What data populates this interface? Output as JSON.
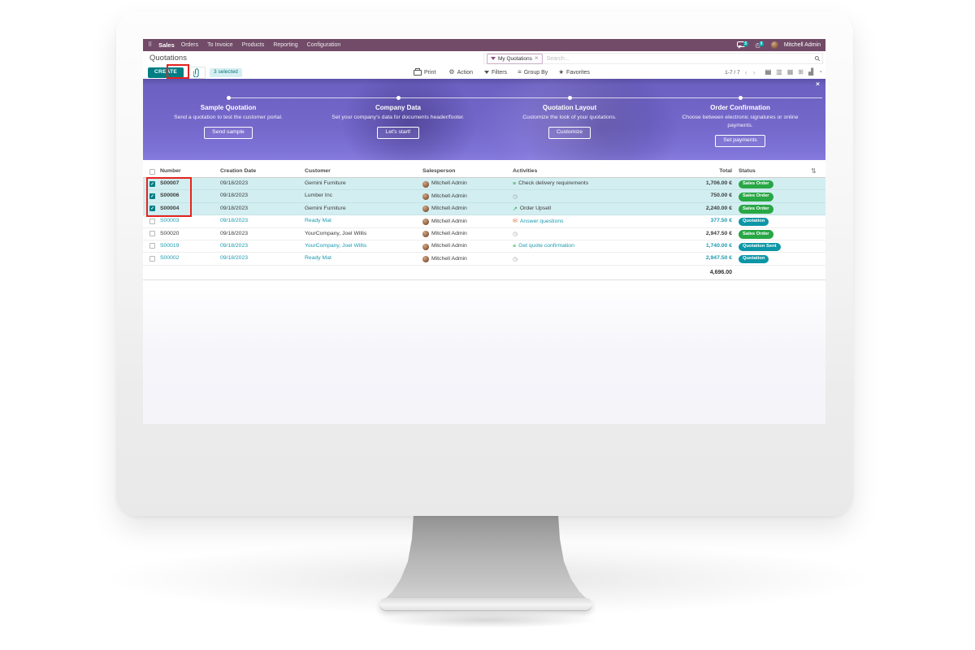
{
  "colors": {
    "brand_bar": "#714B67",
    "primary": "#017E84",
    "selected_row_bg": "#d2eef1",
    "status_green": "#28a745",
    "status_teal": "#0c96a6",
    "link_teal": "#1a9bb0",
    "banner_purple": "#7468cb",
    "annotation_red": "#e5231f"
  },
  "icons": {
    "apps_grid": "⠿",
    "activity_clock": "◷",
    "search_magnifier": "⚲",
    "facet_remove": "×",
    "gear": "⚙",
    "star": "★",
    "group_by": "≡",
    "pager_prev": "‹",
    "pager_next": "›",
    "columns_toggle": "⇅",
    "banner_close": "×",
    "check": "✓",
    "view_list": "▤",
    "view_kanban": "▥",
    "view_calendar": "▦",
    "view_pivot": "⊞",
    "view_graph": "▟",
    "view_activity": "◔",
    "activity_tasks": "≡",
    "activity_chart": "↗",
    "activity_envelope": "✉"
  },
  "nav": {
    "app_label": "Sales",
    "items": [
      "Orders",
      "To Invoice",
      "Products",
      "Reporting",
      "Configuration"
    ],
    "messages_badge": "5",
    "activities_badge": "5",
    "user_name": "Mitchell Admin"
  },
  "breadcrumb": {
    "title": "Quotations"
  },
  "search": {
    "facet_label": "My Quotations",
    "placeholder": "Search..."
  },
  "toolbar": {
    "create_label": "CREATE",
    "selected_badge": "3 selected",
    "print_label": "Print",
    "action_label": "Action",
    "filters_label": "Filters",
    "group_by_label": "Group By",
    "favorites_label": "Favorites",
    "pager": "1-7 / 7"
  },
  "onboarding": {
    "steps": [
      {
        "title": "Company Data",
        "description": "Set your company's data for documents header/footer.",
        "button": "Let's start!"
      },
      {
        "title": "Quotation Layout",
        "description": "Customize the look of your quotations.",
        "button": "Customize"
      },
      {
        "title": "Order Confirmation",
        "description": "Choose between electronic signatures or online payments.",
        "button": "Set payments"
      },
      {
        "title": "Sample Quotation",
        "description": "Send a quotation to test the customer portal.",
        "button": "Send sample"
      }
    ]
  },
  "table": {
    "headers": {
      "number": "Number",
      "creation_date": "Creation Date",
      "customer": "Customer",
      "salesperson": "Salesperson",
      "activities": "Activities",
      "total": "Total",
      "status": "Status"
    },
    "rows": [
      {
        "number": "S00007",
        "creation_date": "09/18/2023",
        "customer": "Gemini Furniture",
        "salesperson": "Mitchell Admin",
        "activity_label": "Check delivery requirements",
        "activity_icon": "tasks",
        "total": "1,706.00 €",
        "status": "Sales Order",
        "status_color": "green",
        "selected": true,
        "tone": "dark"
      },
      {
        "number": "S00006",
        "creation_date": "09/18/2023",
        "customer": "Lumber Inc",
        "salesperson": "Mitchell Admin",
        "activity_label": "",
        "activity_icon": "clock",
        "total": "750.00 €",
        "status": "Sales Order",
        "status_color": "green",
        "selected": true,
        "tone": "dark"
      },
      {
        "number": "S00004",
        "creation_date": "09/18/2023",
        "customer": "Gemini Furniture",
        "salesperson": "Mitchell Admin",
        "activity_label": "Order Upsell",
        "activity_icon": "chart",
        "total": "2,240.00 €",
        "status": "Sales Order",
        "status_color": "green",
        "selected": true,
        "tone": "dark"
      },
      {
        "number": "S00003",
        "creation_date": "09/18/2023",
        "customer": "Ready Mat",
        "salesperson": "Mitchell Admin",
        "activity_label": "Answer questions",
        "activity_icon": "envelope",
        "total": "377.50 €",
        "status": "Quotation",
        "status_color": "teal",
        "selected": false,
        "tone": "teal"
      },
      {
        "number": "S00020",
        "creation_date": "09/18/2023",
        "customer": "YourCompany, Joel Willis",
        "salesperson": "Mitchell Admin",
        "activity_label": "",
        "activity_icon": "clock",
        "total": "2,947.50 €",
        "status": "Sales Order",
        "status_color": "green",
        "selected": false,
        "tone": "dark"
      },
      {
        "number": "S00019",
        "creation_date": "09/18/2023",
        "customer": "YourCompany, Joel Willis",
        "salesperson": "Mitchell Admin",
        "activity_label": "Get quote confirmation",
        "activity_icon": "tasks",
        "total": "1,740.00 €",
        "status": "Quotation Sent",
        "status_color": "teal",
        "selected": false,
        "tone": "teal"
      },
      {
        "number": "S00002",
        "creation_date": "09/18/2023",
        "customer": "Ready Mat",
        "salesperson": "Mitchell Admin",
        "activity_label": "",
        "activity_icon": "clock",
        "total": "2,947.50 €",
        "status": "Quotation",
        "status_color": "teal",
        "selected": false,
        "tone": "teal"
      }
    ],
    "footer_total": "4,696.00"
  },
  "views": [
    {
      "name": "list",
      "active": true
    },
    {
      "name": "kanban",
      "active": false
    },
    {
      "name": "calendar",
      "active": false
    },
    {
      "name": "pivot",
      "active": false
    },
    {
      "name": "graph",
      "active": false
    },
    {
      "name": "activity",
      "active": false
    }
  ]
}
